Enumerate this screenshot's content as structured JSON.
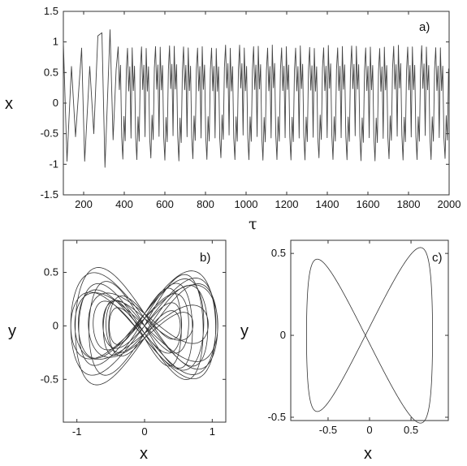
{
  "chart_data": [
    {
      "type": "line",
      "panel_label": "a)",
      "xlabel": "τ",
      "ylabel": "x",
      "xlim": [
        100,
        2000
      ],
      "ylim": [
        -1.5,
        1.5
      ],
      "x_ticks": [
        200,
        400,
        600,
        800,
        1000,
        1200,
        1400,
        1600,
        1800,
        2000
      ],
      "y_ticks": [
        -1.5,
        -1,
        -0.5,
        0,
        0.5,
        1,
        1.5
      ],
      "series_color": "#444444",
      "transient_end": 370,
      "oscillation": {
        "period": 23,
        "upper_peak": 0.92,
        "upper_valley": 0.22,
        "lower_valley": -0.92,
        "lower_peak": -0.22
      },
      "transient_peaks": [
        {
          "x": 100,
          "y": 1.0
        },
        {
          "x": 118,
          "y": -0.95
        },
        {
          "x": 140,
          "y": 0.6
        },
        {
          "x": 160,
          "y": -0.55
        },
        {
          "x": 190,
          "y": 0.9
        },
        {
          "x": 205,
          "y": -0.95
        },
        {
          "x": 230,
          "y": 0.6
        },
        {
          "x": 250,
          "y": -0.5
        },
        {
          "x": 270,
          "y": 1.1
        },
        {
          "x": 290,
          "y": 1.15
        },
        {
          "x": 305,
          "y": -1.05
        },
        {
          "x": 330,
          "y": 1.2
        },
        {
          "x": 345,
          "y": -0.6
        },
        {
          "x": 360,
          "y": 0.55
        }
      ]
    },
    {
      "type": "line",
      "panel_label": "b)",
      "xlabel": "x",
      "ylabel": "y",
      "xlim": [
        -1.2,
        1.2
      ],
      "ylim": [
        -0.9,
        0.8
      ],
      "x_ticks": [
        -1,
        0,
        1
      ],
      "y_ticks": [
        -0.5,
        0,
        0.5
      ],
      "series_color": "#333333",
      "description_values": {
        "turns": 14,
        "x_amplitude_range": [
          0.55,
          1.15
        ],
        "y_amplitude_range": [
          0.35,
          0.85
        ],
        "focus_points": [
          [
            -0.4,
            0
          ],
          [
            0.4,
            0
          ]
        ]
      }
    },
    {
      "type": "line",
      "panel_label": "c)",
      "xlabel": "x",
      "ylabel": "y",
      "xlim": [
        -0.95,
        0.95
      ],
      "ylim": [
        -0.52,
        0.58
      ],
      "x_ticks": [
        -0.5,
        0,
        0.5
      ],
      "y_ticks": [
        -0.5,
        0,
        0.5
      ],
      "series_color": "#333333",
      "description_values": {
        "x_amplitude": 0.85,
        "y_amplitude": 0.5,
        "loop_centers": [
          [
            -0.35,
            0
          ],
          [
            0.35,
            0
          ]
        ]
      }
    }
  ]
}
